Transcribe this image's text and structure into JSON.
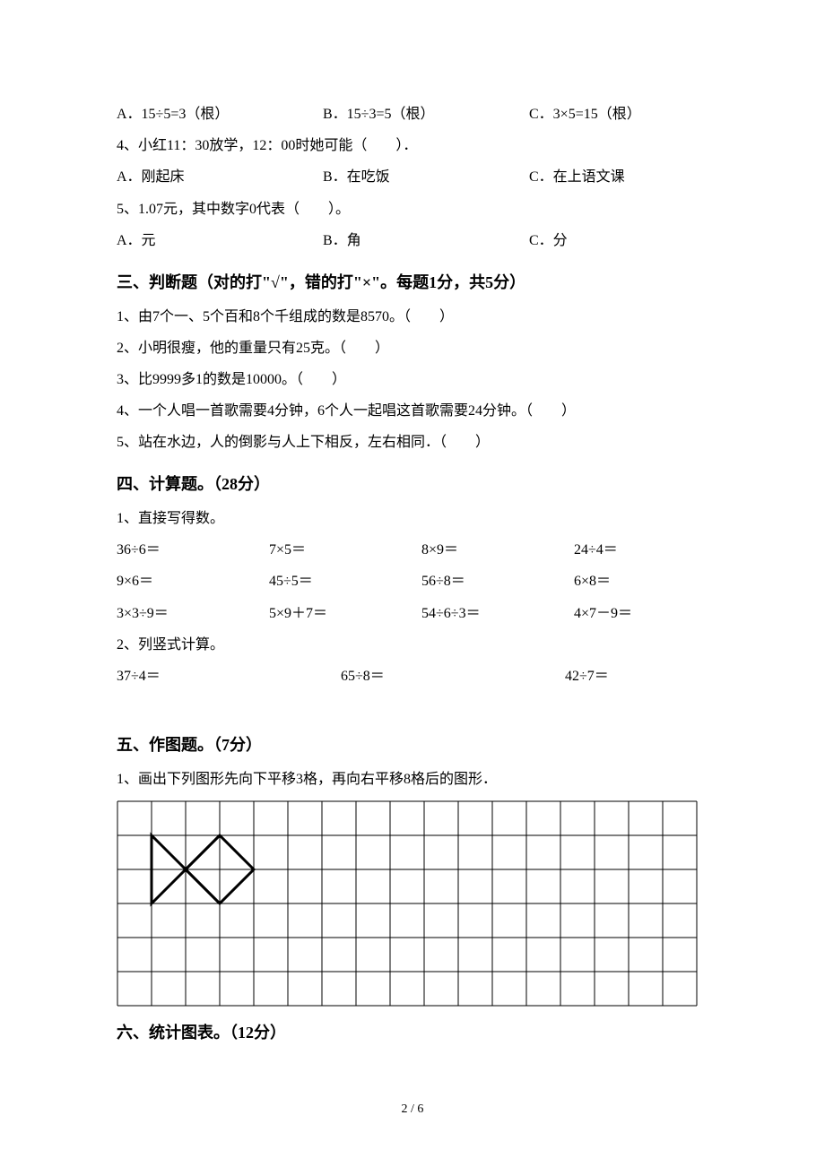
{
  "q3_options": {
    "a": "A．15÷5=3（根）",
    "b": "B．15÷3=5（根）",
    "c": "C．3×5=15（根）"
  },
  "q4_stem": "4、小红11：30放学，12：00时她可能（　　）．",
  "q4_options": {
    "a": "A．刚起床",
    "b": "B．在吃饭",
    "c": "C．在上语文课"
  },
  "q5_stem": "5、1.07元，其中数字0代表（　　）。",
  "q5_options": {
    "a": "A．元",
    "b": "B．角",
    "c": "C．分"
  },
  "sec3_title": "三、判断题（对的打\"√\"，错的打\"×\"。每题1分，共5分）",
  "sec3": {
    "q1": "1、由7个一、5个百和8个千组成的数是8570。（　　）",
    "q2": "2、小明很瘦，他的重量只有25克。（　　）",
    "q3": "3、比9999多1的数是10000。（　　）",
    "q4": "4、一个人唱一首歌需要4分钟，6个人一起唱这首歌需要24分钟。（　　）",
    "q5": "5、站在水边，人的倒影与人上下相反，左右相同．（　　）"
  },
  "sec4_title": "四、计算题。（28分）",
  "sec4_sub1": "1、直接写得数。",
  "calc": {
    "r1": [
      "36÷6＝",
      "7×5＝",
      "8×9＝",
      "24÷4＝"
    ],
    "r2": [
      "9×6＝",
      "45÷5＝",
      "56÷8＝",
      "6×8＝"
    ],
    "r3": [
      "3×3÷9＝",
      "5×9＋7＝",
      "54÷6÷3＝",
      "4×7－9＝"
    ]
  },
  "sec4_sub2": "2、列竖式计算。",
  "calc2": [
    "37÷4＝",
    "65÷8＝",
    "42÷7＝"
  ],
  "sec5_title": "五、作图题。（7分）",
  "sec5_sub1": "1、画出下列图形先向下平移3格，再向右平移8格后的图形．",
  "sec6_title": "六、统计图表。（12分）",
  "grid": {
    "cols": 17,
    "rows": 6,
    "cell": 38,
    "stroke": "#000000",
    "background": "#ffffff",
    "shape_stroke_width": 3
  },
  "pager": "2 / 6"
}
